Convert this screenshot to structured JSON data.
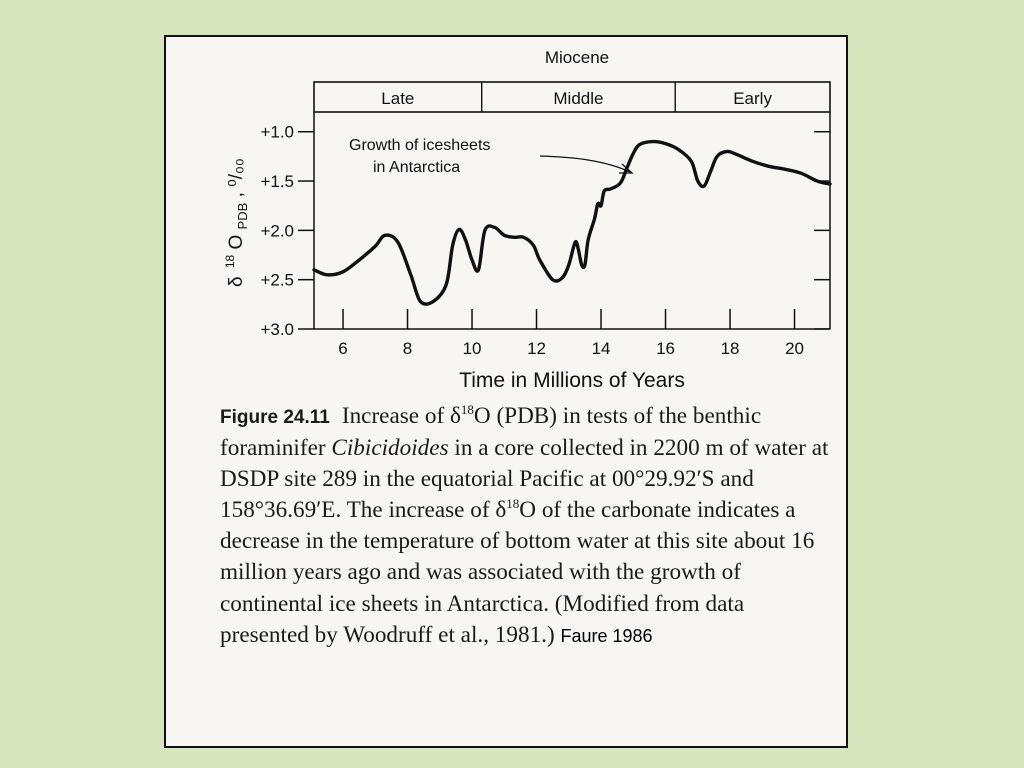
{
  "figure": {
    "epoch": "Miocene",
    "stages": [
      "Late",
      "Middle",
      "Early"
    ],
    "annotation_line1": "Growth of icesheets",
    "annotation_line2": "in Antarctica",
    "y_axis_label_delta": "δ",
    "y_axis_label_sup": "18",
    "y_axis_label_main": "O",
    "y_axis_label_sub": "PDB",
    "y_axis_label_units": ", ⁰/₀₀",
    "x_axis_label": "Time in Millions of Years"
  },
  "caption": {
    "label": "Figure 24.11",
    "t1": "Increase of δ",
    "sup1": "18",
    "t2": "O (PDB) in tests of the benthic foraminifer ",
    "genus": "Cibicidoides",
    "t3": " in a core collected in 2200 m of water at DSDP site 289 in the equatorial Pacific at 00°29.92′S and 158°36.69′E. The increase of δ",
    "sup2": "18",
    "t4": "O of the carbonate indicates a decrease in the temperature of bottom water at this site about 16 million years ago and was associated with the growth of continental ice sheets in Antarctica. (Modified from data presented by Woodruff et al., 1981.)",
    "credit": "Faure 1986"
  },
  "chart_data": {
    "type": "line",
    "title": "",
    "xlabel": "Time in Millions of Years",
    "ylabel": "δ18O PDB, ‰",
    "xlim": [
      5.1,
      21.1
    ],
    "ylim": [
      3.0,
      0.8
    ],
    "y_axis_inverted": true,
    "x_ticks": [
      6,
      8,
      10,
      12,
      14,
      16,
      18,
      20
    ],
    "y_ticks": [
      1.0,
      1.5,
      2.0,
      2.5,
      3.0
    ],
    "y_tick_labels": [
      "+1.0",
      "+1.5",
      "+2.0",
      "+2.5",
      "+3.0"
    ],
    "grid": false,
    "stage_boundaries_ma": [
      10.3,
      16.3
    ],
    "annotation": {
      "text": "Growth of icesheets in Antarctica",
      "points_to": [
        15.0,
        1.22
      ]
    },
    "series": [
      {
        "x": [
          5.1,
          5.5,
          6.0,
          6.5,
          7.0,
          7.3,
          7.7,
          8.1,
          8.4,
          8.8,
          9.2,
          9.4,
          9.6,
          9.8,
          10.0,
          10.2,
          10.4,
          10.7,
          11.0,
          11.3,
          11.6,
          11.9,
          12.1,
          12.5,
          12.8,
          13.0,
          13.2,
          13.3,
          13.4,
          13.5,
          13.6,
          13.8,
          13.9,
          14.0,
          14.1,
          14.3,
          14.6,
          14.8,
          15.0,
          15.2,
          15.6,
          16.0,
          16.4,
          16.8,
          17.0,
          17.2,
          17.4,
          17.6,
          17.9,
          18.2,
          18.7,
          19.2,
          19.7,
          20.2,
          20.7,
          21.1
        ],
        "y": [
          2.4,
          2.45,
          2.42,
          2.3,
          2.16,
          2.05,
          2.12,
          2.45,
          2.72,
          2.72,
          2.55,
          2.15,
          1.99,
          2.1,
          2.3,
          2.4,
          2.0,
          1.97,
          2.05,
          2.07,
          2.07,
          2.15,
          2.3,
          2.5,
          2.48,
          2.35,
          2.12,
          2.2,
          2.35,
          2.35,
          2.1,
          1.88,
          1.73,
          1.75,
          1.6,
          1.58,
          1.52,
          1.37,
          1.22,
          1.13,
          1.1,
          1.12,
          1.18,
          1.3,
          1.5,
          1.55,
          1.4,
          1.25,
          1.2,
          1.23,
          1.3,
          1.35,
          1.38,
          1.42,
          1.5,
          1.53
        ]
      }
    ]
  }
}
